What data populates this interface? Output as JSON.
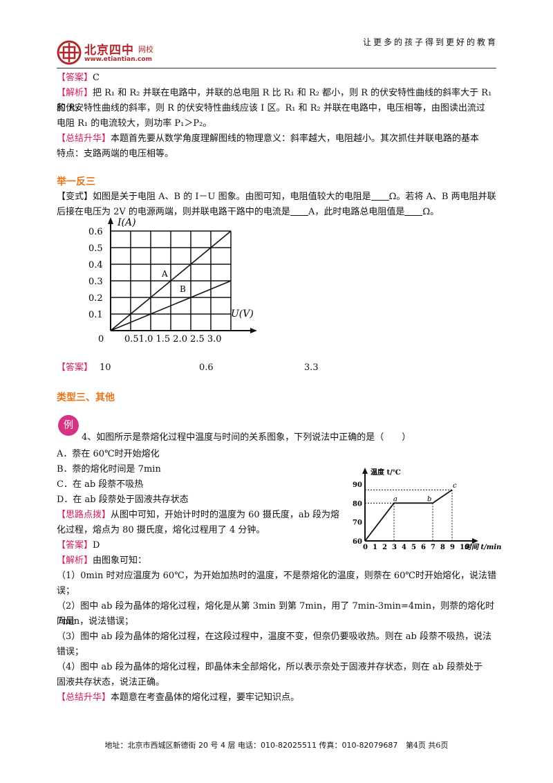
{
  "header": {
    "logo_cn": "北京四中",
    "logo_sub": "网校",
    "logo_url": "www.etiantian.com",
    "slogan": "让更多的孩子得到更好的教育"
  },
  "block1": {
    "answer_tag": "【答案】",
    "answer_val": "C",
    "analysis_tag": "【解析】",
    "analysis_l1": "把 R₁ 和 R₂ 并联在电路中，并联的总电阻 R 比 R₁ 和 R₂ 都小，则 R 的伏安特性曲线的斜率大于 R₁ 和 R₂",
    "analysis_l2": "的伏安特性曲线的斜率，则 R 的伏安特性曲线应该 Ⅰ 区。R₁ 和 R₂ 并联在电路中，电压相等，由图读出流过",
    "analysis_l3": "电阻 R₁ 的电流较大，则功率 P₁＞P₂。",
    "summary_tag": "【总结升华】",
    "summary_l1": "本题首先要从数学角度理解图线的物理意义：斜率越大，电阻越小。其次抓住并联电路的基本",
    "summary_l2": "特点：支路两端的电压相等。"
  },
  "variant": {
    "heading": "举一反三",
    "tag": "【变式】",
    "l1_a": "如图是关于电阻 A、B 的 I－U 图象。由图可知，电阻值较大的电阻是",
    "l1_b": "Ω。若将 A、B 两电阻并联",
    "l2_a": "后接在电压为 2V 的电源两端，则并联电路干路中的电流是",
    "l2_b": "A，此时电路总电阻值是",
    "l2_c": "Ω。",
    "answer_tag": "【答案】",
    "answers": [
      "10",
      "0.6",
      "3.3"
    ]
  },
  "chart_iu": {
    "ylabel": "I(A)",
    "xlabel": "U(V)",
    "yticks": [
      "0.6",
      "0.5",
      "0.4",
      "0.3",
      "0.2",
      "0.1"
    ],
    "origin": "0",
    "xticks": "0.51.0 1.5 2.0 2.5 3.0",
    "label_a": "A",
    "label_b": "B"
  },
  "chart_data": [
    {
      "type": "line",
      "xlabel": "U(V)",
      "ylabel": "I(A)",
      "xlim": [
        0,
        3.0
      ],
      "ylim": [
        0,
        0.6
      ],
      "grid": true,
      "series": [
        {
          "name": "A",
          "x": [
            0,
            3.0
          ],
          "y": [
            0,
            0.6
          ]
        },
        {
          "name": "B",
          "x": [
            0,
            3.0
          ],
          "y": [
            0,
            0.3
          ]
        }
      ]
    },
    {
      "type": "line",
      "xlabel": "时间 t/min",
      "ylabel": "温度 t/℃",
      "xlim": [
        0,
        10
      ],
      "ylim": [
        60,
        90
      ],
      "series": [
        {
          "x": [
            0,
            3,
            7,
            9
          ],
          "y": [
            60,
            80,
            80,
            87
          ],
          "point_labels": [
            "",
            "a",
            "b",
            "c"
          ]
        }
      ]
    }
  ],
  "section3": {
    "heading": "类型三、其他",
    "badge": "例",
    "question": "4、如图所示是萘熔化过程中温度与时间的关系图象，下列说法中正确的是（　　）",
    "opt_a": "A．萘在 60℃时开始熔化",
    "opt_b": "B．萘的熔化时间是 7min",
    "opt_c": "C．在 ab 段萘不吸热",
    "opt_d": "D．在 ab 段萘处于固液共存状态",
    "hint_tag": "【思路点拨】",
    "hint_l1": "从图中可知，开始计时时的温度为 60 摄氏度，ab 段为熔",
    "hint_l2": "化过程，熔点为 80 摄氏度，熔化过程用了 4 分钟。",
    "answer_tag": "【答案】",
    "answer_val": "D",
    "analysis_tag": "【解析】",
    "analysis_intro": "由图象可知：",
    "e1_l1": "（1）0min 时对应温度为 60℃，为开始加热时的温度，不是萘熔化的温度，则萘在 60℃时开始熔化，说法错",
    "e1_l2": "误；",
    "e2_l1": "（2）图中 ab 段为晶体的熔化过程，熔化是从第 3min 到第 7min，用了 7min-3min=4min，则萘的熔化时间是",
    "e2_l2": "7min，说法错误；",
    "e3_l1": "（3）图中 ab 段为晶体的熔化过程，在这段过程中，温度不变，但奈仍要吸收热。则在 ab 段萘不吸热，说法",
    "e3_l2": "错误；",
    "e4_l1": "（4）图中 ab 段为晶体的熔化过程，即晶体未全部熔化，所以表示奈处于固液并存状态，则在 ab 段萘处于",
    "e4_l2": "固液共存状态，说法正确。",
    "summary_tag": "【总结升华】",
    "summary": "本题意在考查晶体的熔化过程，要牢记知识点。"
  },
  "chart_melt": {
    "ylabel": "温度 t/℃",
    "xlabel": "时间 t/min",
    "yticks": [
      "90",
      "80",
      "70",
      "60"
    ],
    "xticks": [
      "0",
      "1",
      "2",
      "3",
      "4",
      "5",
      "6",
      "7",
      "8",
      "9",
      "10"
    ],
    "label_a": "a",
    "label_b": "b",
    "label_c": "c"
  },
  "footer": {
    "text": "地址：北京市西城区新德街 20 号 4 层  电话：010-82025511  传真：010-82079687",
    "page": "第4页  共6页"
  }
}
